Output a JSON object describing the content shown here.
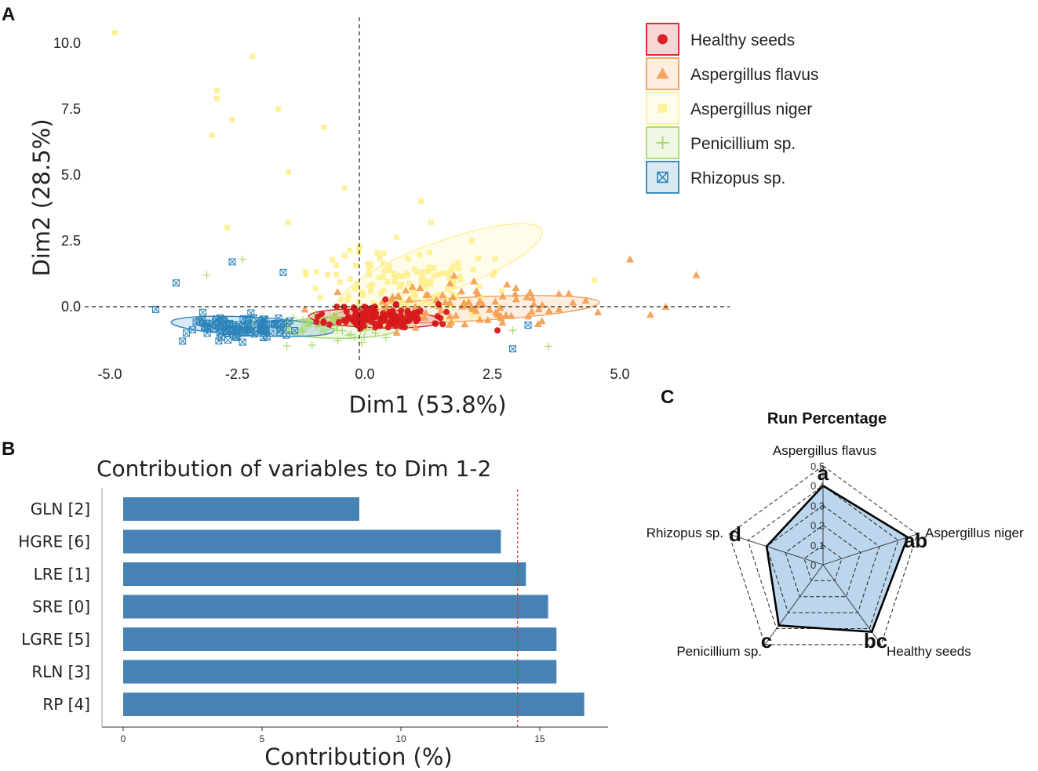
{
  "panels": {
    "a": "A",
    "b": "B",
    "c": "C"
  },
  "chart_data": [
    {
      "type": "scatter",
      "panel": "A",
      "xlabel": "Dim1 (53.8%)",
      "ylabel": "Dim2 (28.5%)",
      "xlim": [
        -5.5,
        7.2
      ],
      "ylim": [
        -2.1,
        10.8
      ],
      "xticks": [
        -5.0,
        -2.5,
        0.0,
        2.5,
        5.0
      ],
      "xtick_labels": [
        "-5.0",
        "-2.5",
        "0.0",
        "2.5",
        "5.0"
      ],
      "yticks": [
        0.0,
        2.5,
        5.0,
        7.5,
        10.0
      ],
      "ytick_labels": [
        "0.0",
        "2.5",
        "5.0",
        "7.5",
        "10.0"
      ],
      "legend": {
        "position": "top-right"
      },
      "series": [
        {
          "name": "Healthy seeds",
          "marker": "circle",
          "color": "#d7191c",
          "ellipse": {
            "cx": 0.2,
            "cy": -0.45,
            "rx": 1.3,
            "ry": 0.35,
            "angle": -2
          },
          "n": 130,
          "center": [
            0.3,
            -0.4
          ],
          "spread": [
            0.9,
            0.45
          ],
          "seed": 11
        },
        {
          "name": "Aspergillus flavus",
          "marker": "triangle",
          "color": "#f4a055",
          "ellipse": {
            "cx": 2.0,
            "cy": -0.1,
            "rx": 2.6,
            "ry": 0.45,
            "angle": 3
          },
          "n": 95,
          "center": [
            1.8,
            0.0
          ],
          "spread": [
            2.0,
            0.7
          ],
          "seed": 23
        },
        {
          "name": "Aspergillus niger",
          "marker": "square",
          "color": "#ffef8f",
          "ellipse": {
            "cx": 1.5,
            "cy": 1.5,
            "rx": 2.1,
            "ry": 0.95,
            "angle": 20
          },
          "n": 140,
          "center": [
            0.8,
            0.9
          ],
          "spread": [
            1.5,
            1.3
          ],
          "seed": 37
        },
        {
          "name": "Penicillium sp.",
          "marker": "plus",
          "color": "#a6d96a",
          "ellipse": {
            "cx": -0.5,
            "cy": -0.8,
            "rx": 1.2,
            "ry": 0.4,
            "angle": 0
          },
          "n": 70,
          "center": [
            -0.6,
            -0.7
          ],
          "spread": [
            1.3,
            0.6
          ],
          "seed": 53
        },
        {
          "name": "Rhizopus sp.",
          "marker": "boxed-x",
          "color": "#2b83ba",
          "ellipse": {
            "cx": -2.2,
            "cy": -0.75,
            "rx": 1.6,
            "ry": 0.35,
            "angle": -3
          },
          "n": 110,
          "center": [
            -2.4,
            -0.8
          ],
          "spread": [
            1.0,
            0.45
          ],
          "seed": 71
        }
      ],
      "outliers": {
        "Aspergillus niger": [
          [
            -4.9,
            10.4
          ],
          [
            -2.2,
            9.5
          ],
          [
            -2.9,
            8.2
          ],
          [
            -2.9,
            7.9
          ],
          [
            -1.7,
            7.5
          ],
          [
            -2.6,
            7.1
          ],
          [
            -3.0,
            6.5
          ],
          [
            -0.8,
            6.8
          ],
          [
            -1.5,
            5.1
          ],
          [
            -0.4,
            4.5
          ],
          [
            -2.7,
            3.0
          ],
          [
            -1.5,
            3.2
          ],
          [
            1.1,
            4.0
          ],
          [
            2.1,
            2.5
          ],
          [
            1.3,
            3.2
          ],
          [
            4.5,
            1.0
          ]
        ],
        "Aspergillus flavus": [
          [
            6.5,
            1.2
          ],
          [
            5.2,
            1.8
          ],
          [
            4.0,
            0.5
          ],
          [
            5.6,
            -0.3
          ],
          [
            5.9,
            0.0
          ]
        ],
        "Rhizopus sp.": [
          [
            -2.6,
            1.7
          ],
          [
            -1.6,
            1.3
          ],
          [
            -3.7,
            0.9
          ],
          [
            -4.1,
            -0.1
          ],
          [
            2.9,
            -1.6
          ],
          [
            3.2,
            -0.7
          ]
        ],
        "Penicillium sp.": [
          [
            -2.4,
            1.8
          ],
          [
            -3.1,
            1.2
          ],
          [
            3.6,
            -1.5
          ],
          [
            2.9,
            -0.9
          ]
        ],
        "Healthy seeds": [
          [
            2.6,
            -0.9
          ],
          [
            1.6,
            -0.2
          ]
        ]
      }
    },
    {
      "type": "bar",
      "orientation": "horizontal",
      "panel": "B",
      "title": "Contribution of variables to Dim 1-2",
      "xlabel": "Contribution (%)",
      "ylabel": "",
      "categories": [
        "GLN [2]",
        "HGRE [6]",
        "LRE [1]",
        "SRE [0]",
        "LGRE [5]",
        "RLN [3]",
        "RP [4]"
      ],
      "values": [
        8.5,
        13.6,
        14.5,
        15.3,
        15.6,
        15.6,
        16.6
      ],
      "xlim": [
        0,
        17.5
      ],
      "xticks": [
        0,
        5,
        10,
        15
      ],
      "xtick_labels": [
        "0",
        "5",
        "10",
        "15"
      ],
      "reference_line": 14.2,
      "bar_color": "#4682b4",
      "reference_color": "#e03030"
    },
    {
      "type": "radar",
      "panel": "C",
      "title": "Run Percentage",
      "axes": [
        "Aspergillus flavus",
        "Aspergillus niger",
        "Healthy seeds",
        "Penicillium sp.",
        "Rhizopus sp."
      ],
      "values": [
        0.4,
        0.45,
        0.42,
        0.38,
        0.3
      ],
      "significance": [
        "a",
        "ab",
        "bc",
        "c",
        "d"
      ],
      "rmax": 0.5,
      "rticks": [
        0,
        0.1,
        0.2,
        0.3,
        0.4,
        0.5
      ],
      "rtick_labels": [
        "0",
        "0,1",
        "0,2",
        "0,3",
        "0,4",
        "0,5"
      ],
      "fill_color": "#bcd6ee",
      "line_color": "#000000"
    }
  ]
}
